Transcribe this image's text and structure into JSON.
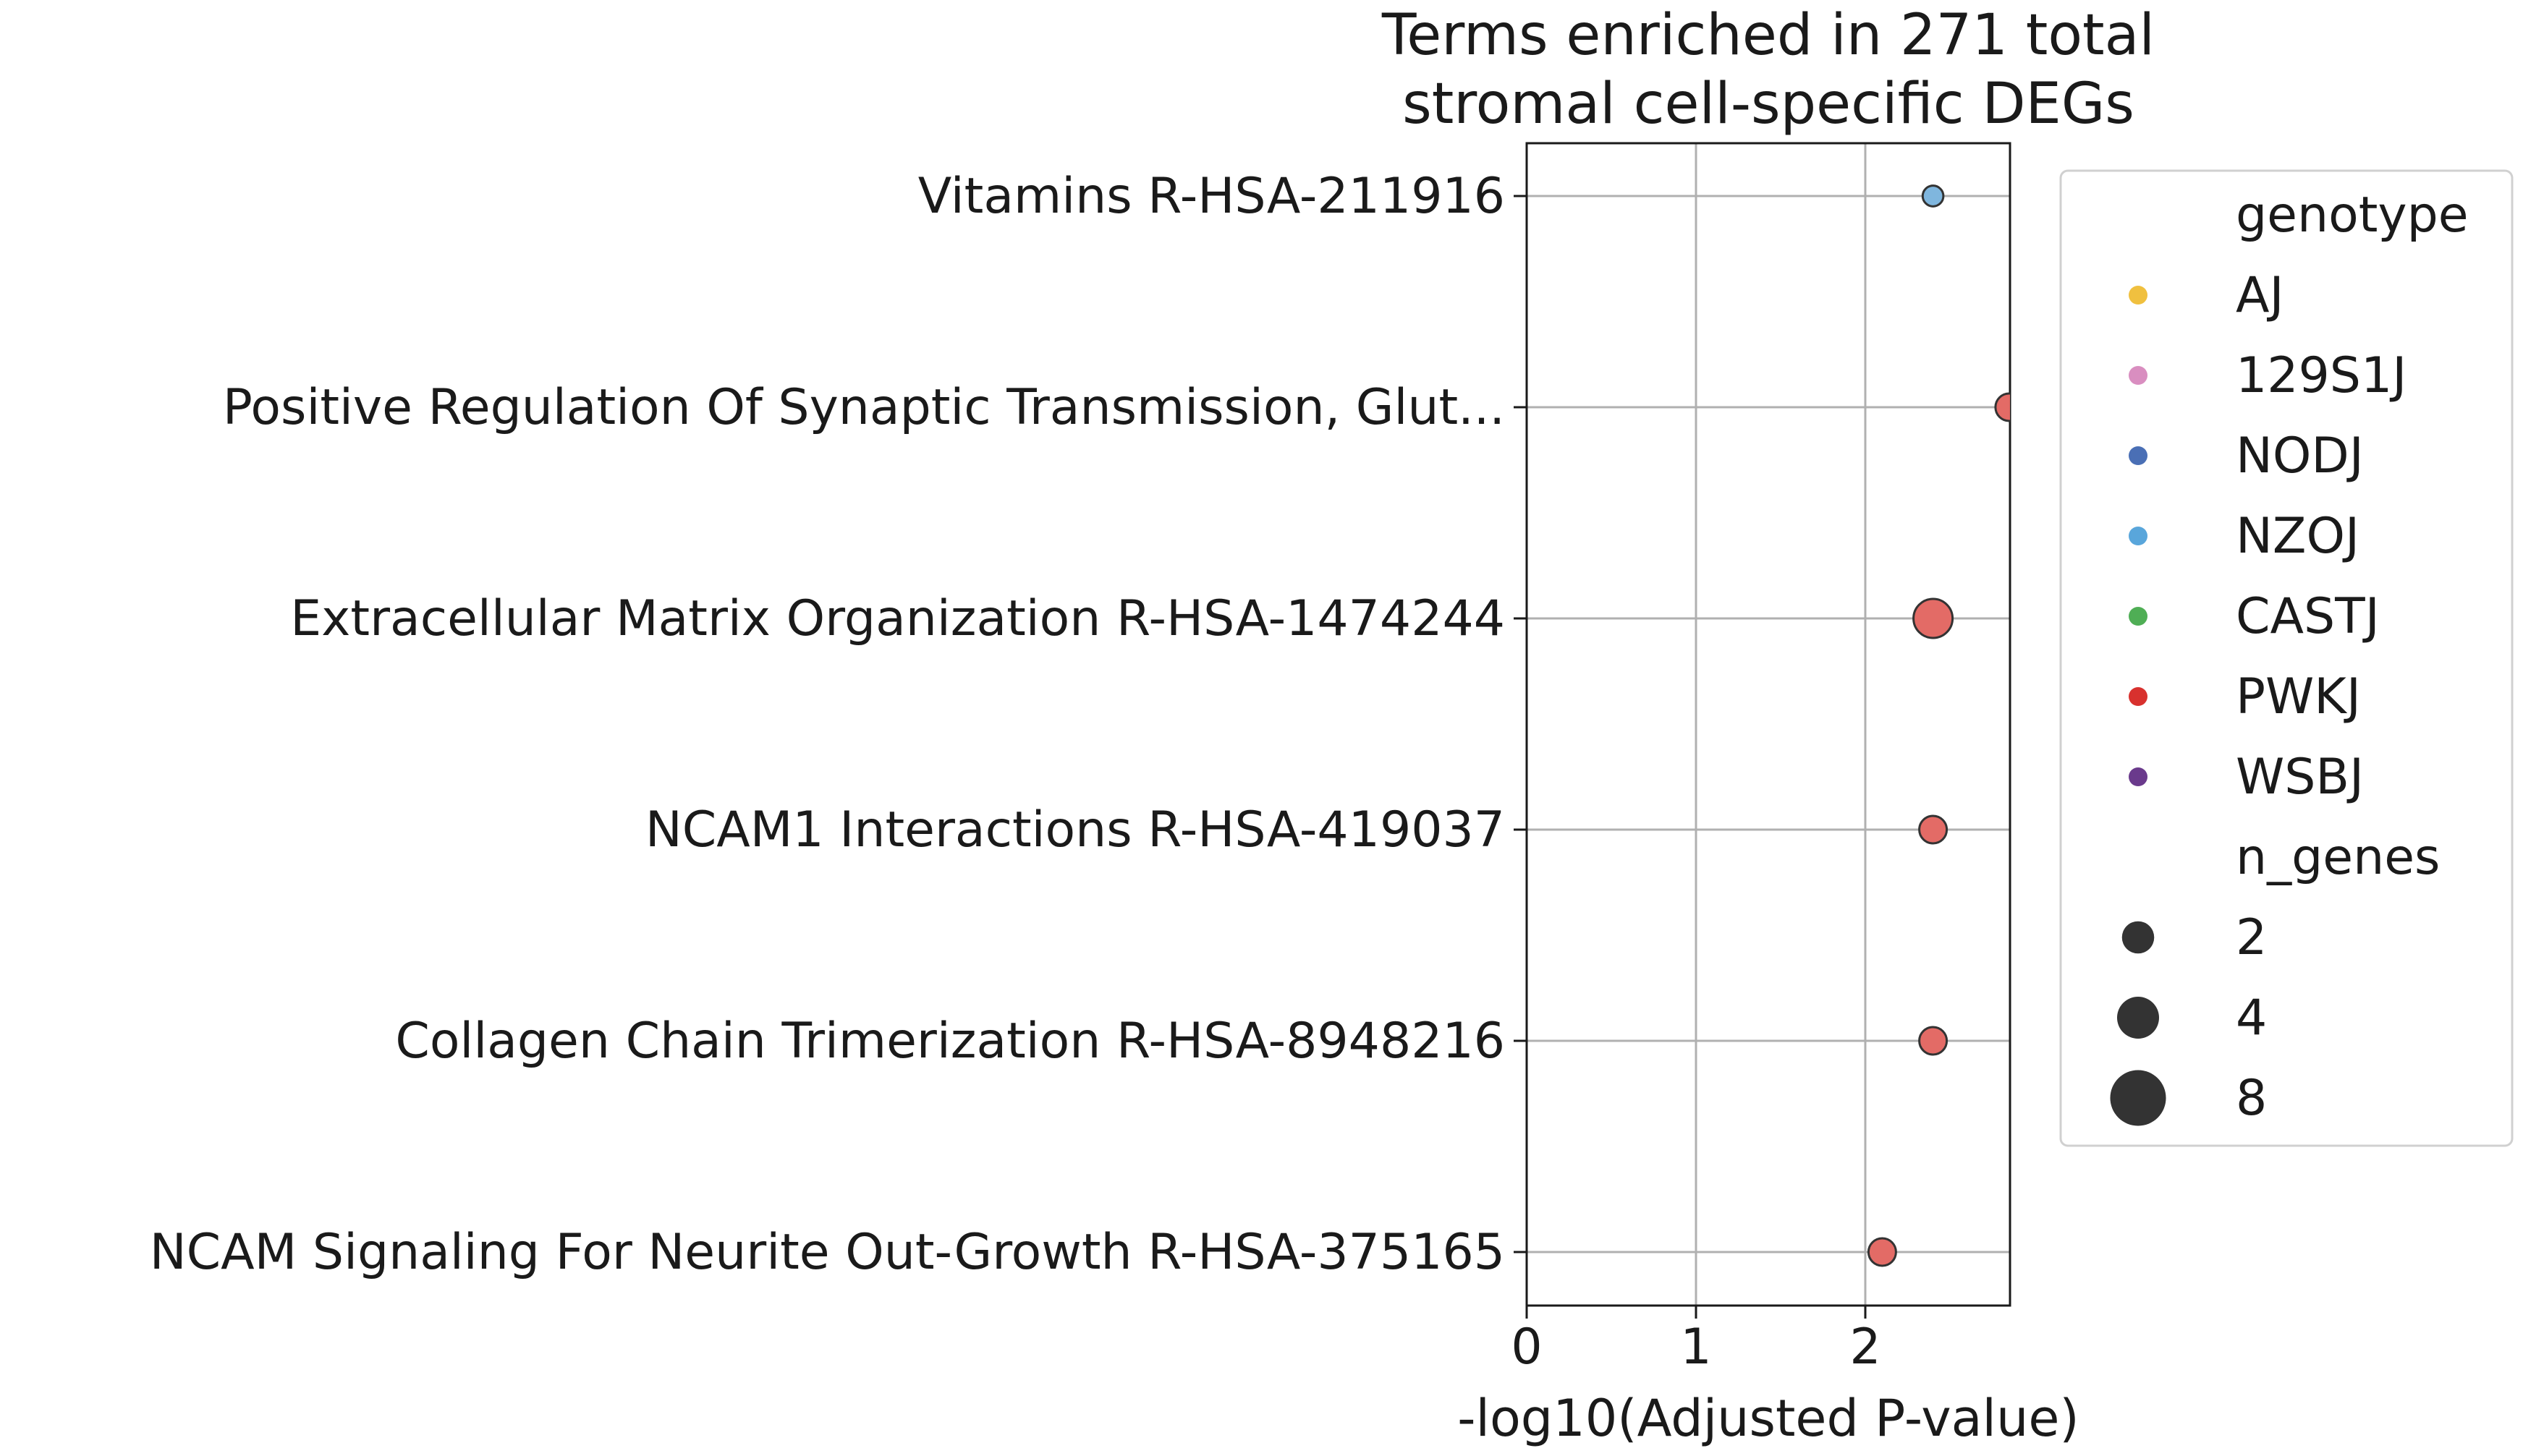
{
  "chart_data": {
    "type": "scatter",
    "title": "Terms enriched in 271 total\nstromal cell-specific DEGs",
    "xlabel": "-log10(Adjusted P-value)",
    "ylabel": "",
    "xlim": [
      0,
      2.85
    ],
    "xticks": [
      "0",
      "1",
      "2"
    ],
    "grid": true,
    "categories": [
      "Vitamins R-HSA-211916",
      "Positive Regulation Of Synaptic Transmission, Glut...",
      "Extracellular Matrix Organization R-HSA-1474244",
      "NCAM1 Interactions R-HSA-419037",
      "Collagen Chain Trimerization R-HSA-8948216",
      "NCAM Signaling For Neurite Out-Growth R-HSA-375165"
    ],
    "points": [
      {
        "category": "Vitamins R-HSA-211916",
        "x": 2.4,
        "n_genes": 2,
        "genotype": "NZOJ"
      },
      {
        "category": "Positive Regulation Of Synaptic Transmission, Glut...",
        "x": 2.85,
        "n_genes": 4,
        "genotype": "PWKJ"
      },
      {
        "category": "Extracellular Matrix Organization R-HSA-1474244",
        "x": 2.4,
        "n_genes": 9,
        "genotype": "PWKJ"
      },
      {
        "category": "NCAM1 Interactions R-HSA-419037",
        "x": 2.4,
        "n_genes": 4,
        "genotype": "PWKJ"
      },
      {
        "category": "Collagen Chain Trimerization R-HSA-8948216",
        "x": 2.4,
        "n_genes": 4,
        "genotype": "PWKJ"
      },
      {
        "category": "NCAM Signaling For Neurite Out-Growth R-HSA-375165",
        "x": 2.1,
        "n_genes": 4,
        "genotype": "PWKJ"
      }
    ],
    "legend": {
      "placement": "right",
      "hue_title": "genotype",
      "hue_entries": [
        {
          "label": "AJ",
          "color": "#f0c03f"
        },
        {
          "label": "129S1J",
          "color": "#d98ec0"
        },
        {
          "label": "NODJ",
          "color": "#4a6fb5"
        },
        {
          "label": "NZOJ",
          "color": "#59a6db"
        },
        {
          "label": "CASTJ",
          "color": "#4fae55"
        },
        {
          "label": "PWKJ",
          "color": "#d8312e"
        },
        {
          "label": "WSBJ",
          "color": "#6a3a8c"
        }
      ],
      "size_title": "n_genes",
      "size_entries": [
        {
          "label": "2",
          "value": 2
        },
        {
          "label": "4",
          "value": 4
        },
        {
          "label": "8",
          "value": 8
        }
      ]
    },
    "point_colors": {
      "NZOJ": "#7fb6de",
      "PWKJ": "#e36b66"
    },
    "colors": {
      "grid": "#b0b0b0",
      "axis": "#1a1a1a",
      "legend_marker": "#333333",
      "legend_border": "#d0d0d0"
    }
  }
}
